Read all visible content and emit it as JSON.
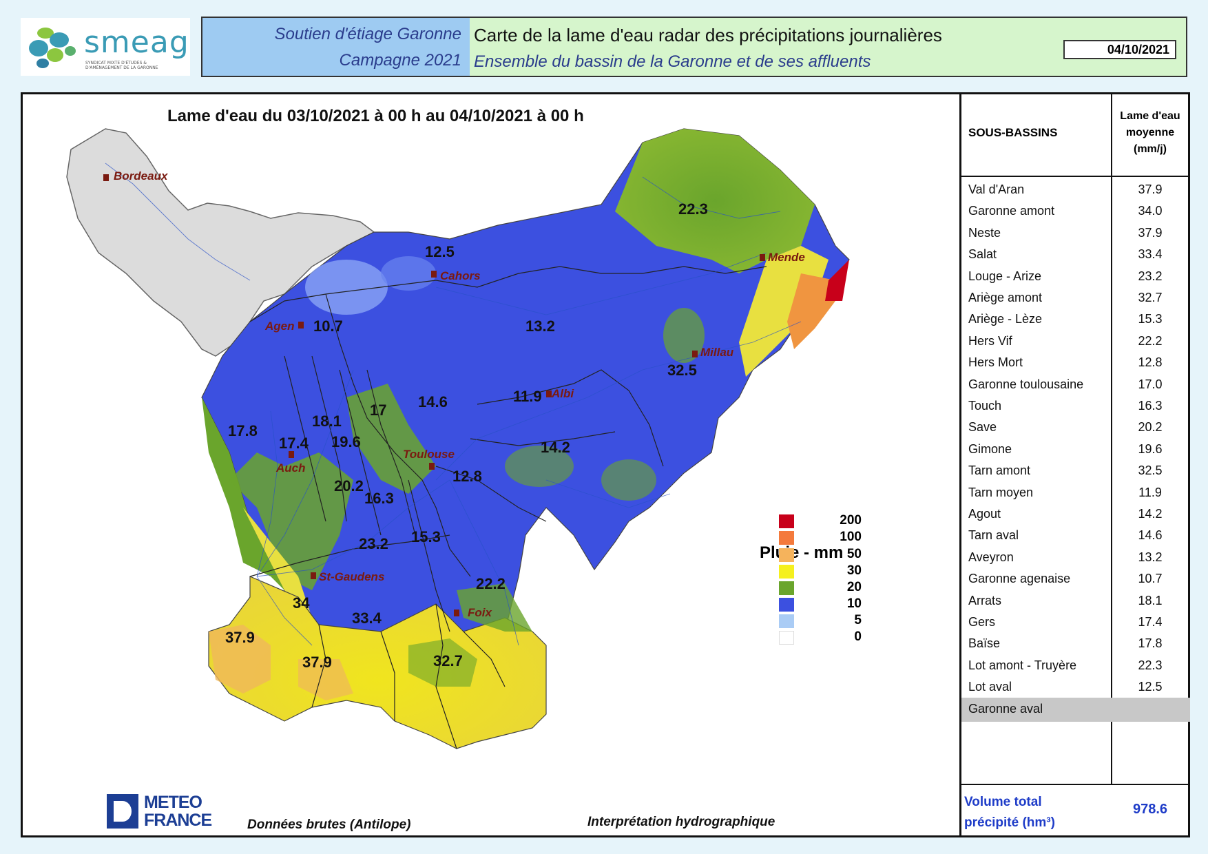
{
  "header": {
    "logo_text": "smeag",
    "logo_subtext": "SYNDICAT MIXTE D'ÉTUDES & D'AMÉNAGEMENT DE LA GARONNE",
    "program_line1": "Soutien d'étiage Garonne",
    "program_line2": "Campagne 2021",
    "title_line1": "Carte de la lame d'eau radar des précipitations journalières",
    "title_line2": "Ensemble du bassin de la Garonne et de ses affluents",
    "date": "04/10/2021"
  },
  "map": {
    "title": "Lame d'eau du 03/10/2021 à 00 h au 04/10/2021 à 00 h",
    "cities": [
      "Bordeaux",
      "Cahors",
      "Mende",
      "Agen",
      "Millau",
      "Albi",
      "Toulouse",
      "Auch",
      "St-Gaudens",
      "Foix"
    ],
    "basin_values": [
      "22.3",
      "12.5",
      "10.7",
      "13.2",
      "32.5",
      "11.9",
      "17.8",
      "17.4",
      "18.1",
      "19.6",
      "17",
      "14.6",
      "14.2",
      "20.2",
      "16.3",
      "12.8",
      "23.2",
      "15.3",
      "22.2",
      "34",
      "33.4",
      "37.9",
      "37.9",
      "32.7"
    ],
    "legend": {
      "title": "Pluie - mm",
      "classes": [
        {
          "label": "200",
          "color": "#c8001a"
        },
        {
          "label": "100",
          "color": "#f47a3c"
        },
        {
          "label": "50",
          "color": "#f5b35c"
        },
        {
          "label": "30",
          "color": "#f5f01e"
        },
        {
          "label": "20",
          "color": "#6aa52c"
        },
        {
          "label": "10",
          "color": "#3c50e0"
        },
        {
          "label": "5",
          "color": "#aaccf5"
        },
        {
          "label": "0",
          "color": "#ffffff"
        }
      ]
    },
    "credit_data": "Données brutes (Antilope)",
    "credit_interp": "Interprétation hydrographique",
    "provider_line1": "METEO",
    "provider_line2": "FRANCE"
  },
  "table": {
    "col1_header": "SOUS-BASSINS",
    "col2_header_l1": "Lame d'eau",
    "col2_header_l2": "moyenne",
    "col2_header_l3": "(mm/j)",
    "rows": [
      {
        "name": "Val d'Aran",
        "value": "37.9"
      },
      {
        "name": "Garonne amont",
        "value": "34.0"
      },
      {
        "name": "Neste",
        "value": "37.9"
      },
      {
        "name": "Salat",
        "value": "33.4"
      },
      {
        "name": "Louge - Arize",
        "value": "23.2"
      },
      {
        "name": "Ariège amont",
        "value": "32.7"
      },
      {
        "name": "Ariège - Lèze",
        "value": "15.3"
      },
      {
        "name": "Hers Vif",
        "value": "22.2"
      },
      {
        "name": "Hers Mort",
        "value": "12.8"
      },
      {
        "name": "Garonne toulousaine",
        "value": "17.0"
      },
      {
        "name": "Touch",
        "value": "16.3"
      },
      {
        "name": "Save",
        "value": "20.2"
      },
      {
        "name": "Gimone",
        "value": "19.6"
      },
      {
        "name": "Tarn amont",
        "value": "32.5"
      },
      {
        "name": "Tarn moyen",
        "value": "11.9"
      },
      {
        "name": "Agout",
        "value": "14.2"
      },
      {
        "name": "Tarn aval",
        "value": "14.6"
      },
      {
        "name": "Aveyron",
        "value": "13.2"
      },
      {
        "name": "Garonne agenaise",
        "value": "10.7"
      },
      {
        "name": "Arrats",
        "value": "18.1"
      },
      {
        "name": "Gers",
        "value": "17.4"
      },
      {
        "name": "Baïse",
        "value": "17.8"
      },
      {
        "name": "Lot amont - Truyère",
        "value": "22.3"
      },
      {
        "name": "Lot aval",
        "value": "12.5"
      },
      {
        "name": "Garonne aval",
        "value": ""
      }
    ],
    "footer_label_l1": "Volume total",
    "footer_label_l2": "précipité (hm³)",
    "footer_value": "978.6"
  }
}
